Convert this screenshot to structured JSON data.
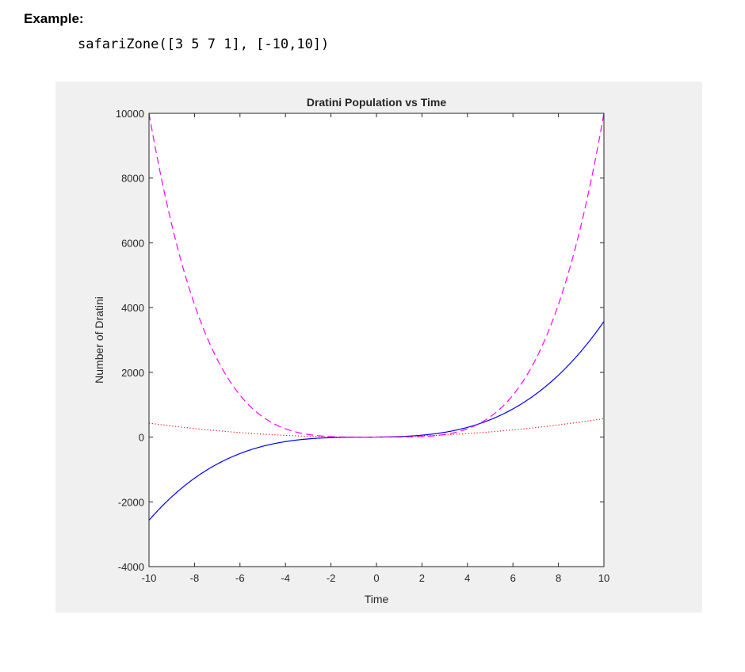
{
  "heading": "Example:",
  "code": "safariZone([3 5 7 1], [-10,10])",
  "colors": {
    "figure_bg": "#f0f0f0",
    "axes_bg": "#ffffff",
    "blue": "#0000ff",
    "magenta": "#ff00ff",
    "red": "#ff0000"
  },
  "chart_data": {
    "type": "line",
    "title": "Dratini Population vs Time",
    "xlabel": "Time",
    "ylabel": "Number of Dratini",
    "xlim": [
      -10,
      10
    ],
    "ylim": [
      -4000,
      10000
    ],
    "xticks": [
      -10,
      -8,
      -6,
      -4,
      -2,
      0,
      2,
      4,
      6,
      8,
      10
    ],
    "yticks": [
      -4000,
      -2000,
      0,
      2000,
      4000,
      6000,
      8000,
      10000
    ],
    "grid": false,
    "legend": "none",
    "series": [
      {
        "style": "solid",
        "color": "#0000ff",
        "coefficients": [
          3,
          5,
          7,
          1
        ],
        "degree": 3
      },
      {
        "style": "dotted",
        "color": "#ff0000",
        "coefficients": [
          5,
          7,
          1
        ],
        "degree": 2
      },
      {
        "style": "dashed",
        "color": "#ff00ff",
        "coefficients": [
          1,
          0,
          0,
          0,
          0
        ],
        "degree": 4
      }
    ]
  }
}
